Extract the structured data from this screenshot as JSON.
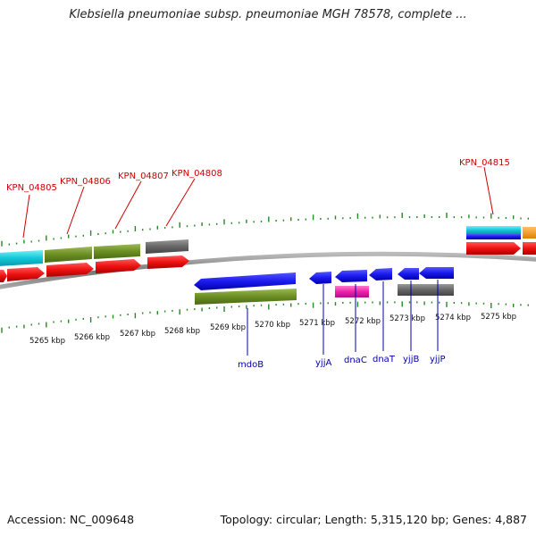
{
  "title": "Klebsiella pneumoniae subsp. pneumoniae MGH 78578, complete ...",
  "footer": {
    "accession": "Accession: NC_009648",
    "summary": "Topology: circular; Length: 5,315,120 bp; Genes: 4,887"
  },
  "scale_labels": [
    "5265 kbp",
    "5266 kbp",
    "5267 kbp",
    "5268 kbp",
    "5269 kbp",
    "5270 kbp",
    "5271 kbp",
    "5272 kbp",
    "5273 kbp",
    "5274 kbp",
    "5275 kbp"
  ],
  "locus_tags": [
    "KPN_04805",
    "KPN_04806",
    "KPN_04807",
    "KPN_04808",
    "KPN_04815"
  ],
  "gene_names": [
    "mdoB",
    "yjjA",
    "dnaC",
    "dnaT",
    "yjjB",
    "yjjP"
  ],
  "colors": {
    "cds_red": "#ee1111",
    "cds_blue": "#1a1aee",
    "gene_olive": "#6b8e23",
    "gene_cyan": "#11c8d8",
    "gene_gray": "#666666",
    "gene_magenta": "#ee22aa",
    "gene_orange": "#ff9900",
    "tick_green": "#228b22",
    "label_red": "#cc0000",
    "label_blue": "#0000aa",
    "backbone": "#888888"
  }
}
